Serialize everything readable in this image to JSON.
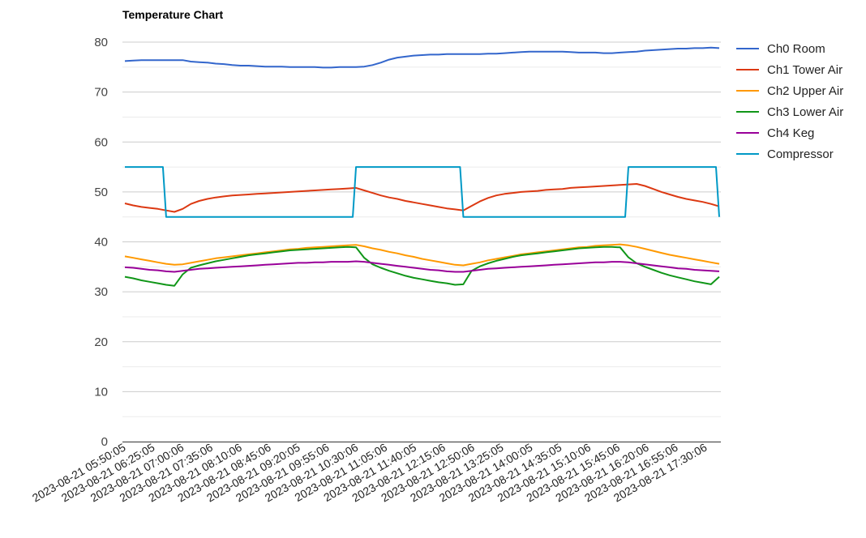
{
  "chart_data": {
    "type": "line",
    "title": "Temperature Chart",
    "ylim": [
      0,
      80
    ],
    "yticks": [
      0,
      10,
      20,
      30,
      40,
      50,
      60,
      70,
      80
    ],
    "grid": true,
    "legend": "right",
    "x_labels": [
      "2023-08-21 05:50:05",
      "2023-08-21 06:25:05",
      "2023-08-21 07:00:06",
      "2023-08-21 07:35:06",
      "2023-08-21 08:10:06",
      "2023-08-21 08:45:06",
      "2023-08-21 09:20:05",
      "2023-08-21 09:55:06",
      "2023-08-21 10:30:06",
      "2023-08-21 11:05:06",
      "2023-08-21 11:40:05",
      "2023-08-21 12:15:06",
      "2023-08-21 12:50:06",
      "2023-08-21 13:25:05",
      "2023-08-21 14:00:05",
      "2023-08-21 14:35:05",
      "2023-08-21 15:10:06",
      "2023-08-21 15:45:06",
      "2023-08-21 16:20:06",
      "2023-08-21 16:55:06",
      "2023-08-21 17:30:06"
    ],
    "x": [
      "05:50",
      "06:00",
      "06:10",
      "06:20",
      "06:30",
      "06:40",
      "06:50",
      "07:00",
      "07:10",
      "07:20",
      "07:30",
      "07:40",
      "07:50",
      "08:00",
      "08:10",
      "08:20",
      "08:30",
      "08:40",
      "08:50",
      "09:00",
      "09:10",
      "09:20",
      "09:30",
      "09:40",
      "09:50",
      "10:00",
      "10:10",
      "10:20",
      "10:30",
      "10:40",
      "10:50",
      "11:00",
      "11:10",
      "11:20",
      "11:30",
      "11:40",
      "11:50",
      "12:00",
      "12:10",
      "12:20",
      "12:30",
      "12:40",
      "12:50",
      "13:00",
      "13:10",
      "13:20",
      "13:30",
      "13:40",
      "13:50",
      "14:00",
      "14:10",
      "14:20",
      "14:30",
      "14:40",
      "14:50",
      "15:00",
      "15:10",
      "15:20",
      "15:30",
      "15:40",
      "15:50",
      "16:00",
      "16:10",
      "16:20",
      "16:30",
      "16:40",
      "16:50",
      "17:00",
      "17:10",
      "17:20",
      "17:30",
      "17:40",
      "17:50"
    ],
    "series": [
      {
        "name": "Ch0 Room",
        "color": "#3366cc",
        "values": [
          76.2,
          76.3,
          76.4,
          76.4,
          76.4,
          76.4,
          76.4,
          76.4,
          76.1,
          76.0,
          75.9,
          75.7,
          75.6,
          75.4,
          75.3,
          75.3,
          75.2,
          75.1,
          75.1,
          75.1,
          75.0,
          75.0,
          75.0,
          75.0,
          74.9,
          74.9,
          75.0,
          75.0,
          75.0,
          75.1,
          75.4,
          75.9,
          76.5,
          76.9,
          77.1,
          77.3,
          77.4,
          77.5,
          77.5,
          77.6,
          77.6,
          77.6,
          77.6,
          77.6,
          77.7,
          77.7,
          77.8,
          77.9,
          78.0,
          78.1,
          78.1,
          78.1,
          78.1,
          78.1,
          78.0,
          77.9,
          77.9,
          77.9,
          77.8,
          77.8,
          77.9,
          78.0,
          78.1,
          78.3,
          78.4,
          78.5,
          78.6,
          78.7,
          78.7,
          78.8,
          78.8,
          78.9,
          78.8
        ]
      },
      {
        "name": "Ch1 Tower Air",
        "color": "#dc3912",
        "values": [
          47.7,
          47.3,
          47.0,
          46.8,
          46.6,
          46.3,
          46.0,
          46.6,
          47.6,
          48.2,
          48.6,
          48.9,
          49.1,
          49.3,
          49.4,
          49.5,
          49.6,
          49.7,
          49.8,
          49.9,
          50.0,
          50.1,
          50.2,
          50.3,
          50.4,
          50.5,
          50.6,
          50.7,
          50.8,
          50.3,
          49.8,
          49.3,
          48.9,
          48.6,
          48.2,
          47.9,
          47.6,
          47.3,
          47.0,
          46.7,
          46.5,
          46.3,
          47.2,
          48.1,
          48.8,
          49.3,
          49.6,
          49.8,
          50.0,
          50.1,
          50.2,
          50.4,
          50.5,
          50.6,
          50.8,
          50.9,
          51.0,
          51.1,
          51.2,
          51.3,
          51.4,
          51.5,
          51.6,
          51.2,
          50.6,
          50.0,
          49.5,
          49.0,
          48.6,
          48.3,
          48.0,
          47.6,
          47.1
        ]
      },
      {
        "name": "Ch2 Upper Air",
        "color": "#ff9900",
        "values": [
          37.1,
          36.8,
          36.5,
          36.2,
          35.9,
          35.6,
          35.4,
          35.5,
          35.8,
          36.1,
          36.4,
          36.7,
          36.9,
          37.1,
          37.3,
          37.5,
          37.7,
          37.9,
          38.1,
          38.3,
          38.5,
          38.6,
          38.8,
          38.9,
          39.0,
          39.1,
          39.2,
          39.3,
          39.4,
          39.1,
          38.7,
          38.4,
          38.0,
          37.7,
          37.3,
          37.0,
          36.6,
          36.3,
          36.0,
          35.7,
          35.4,
          35.3,
          35.6,
          35.9,
          36.3,
          36.6,
          36.9,
          37.2,
          37.5,
          37.7,
          37.9,
          38.1,
          38.3,
          38.5,
          38.7,
          38.9,
          39.0,
          39.2,
          39.3,
          39.4,
          39.5,
          39.3,
          39.0,
          38.6,
          38.2,
          37.8,
          37.4,
          37.1,
          36.8,
          36.5,
          36.2,
          35.9,
          35.6
        ]
      },
      {
        "name": "Ch3 Lower Air",
        "color": "#109618",
        "values": [
          33.0,
          32.7,
          32.3,
          32.0,
          31.7,
          31.4,
          31.2,
          33.5,
          34.8,
          35.3,
          35.7,
          36.1,
          36.4,
          36.7,
          37.0,
          37.3,
          37.5,
          37.7,
          37.9,
          38.1,
          38.3,
          38.4,
          38.5,
          38.6,
          38.7,
          38.8,
          38.9,
          39.0,
          38.9,
          36.8,
          35.5,
          34.8,
          34.2,
          33.7,
          33.2,
          32.8,
          32.5,
          32.2,
          31.9,
          31.7,
          31.4,
          31.5,
          34.2,
          35.1,
          35.7,
          36.2,
          36.6,
          37.0,
          37.3,
          37.5,
          37.7,
          37.9,
          38.1,
          38.3,
          38.5,
          38.7,
          38.8,
          38.9,
          39.0,
          39.0,
          38.9,
          36.9,
          35.7,
          35.0,
          34.4,
          33.8,
          33.3,
          32.9,
          32.5,
          32.1,
          31.8,
          31.5,
          33.0
        ]
      },
      {
        "name": "Ch4 Keg",
        "color": "#990099",
        "values": [
          34.9,
          34.8,
          34.6,
          34.4,
          34.3,
          34.1,
          34.0,
          34.2,
          34.4,
          34.6,
          34.7,
          34.8,
          34.9,
          35.0,
          35.1,
          35.2,
          35.3,
          35.4,
          35.5,
          35.6,
          35.7,
          35.8,
          35.8,
          35.9,
          35.9,
          36.0,
          36.0,
          36.0,
          36.1,
          36.0,
          35.8,
          35.6,
          35.4,
          35.2,
          35.0,
          34.8,
          34.6,
          34.4,
          34.3,
          34.1,
          34.0,
          34.0,
          34.2,
          34.4,
          34.6,
          34.7,
          34.8,
          34.9,
          35.0,
          35.1,
          35.2,
          35.3,
          35.4,
          35.5,
          35.6,
          35.7,
          35.8,
          35.9,
          35.9,
          36.0,
          36.0,
          35.9,
          35.7,
          35.5,
          35.3,
          35.1,
          34.9,
          34.7,
          34.6,
          34.4,
          34.3,
          34.2,
          34.1
        ]
      },
      {
        "name": "Compressor",
        "color": "#0099c6",
        "values": [
          55,
          55,
          55,
          55,
          55,
          45,
          45,
          45,
          45,
          45,
          45,
          45,
          45,
          45,
          45,
          45,
          45,
          45,
          45,
          45,
          45,
          45,
          45,
          45,
          45,
          45,
          45,
          45,
          55,
          55,
          55,
          55,
          55,
          55,
          55,
          55,
          55,
          55,
          55,
          55,
          55,
          45,
          45,
          45,
          45,
          45,
          45,
          45,
          45,
          45,
          45,
          45,
          45,
          45,
          45,
          45,
          45,
          45,
          45,
          45,
          45,
          55,
          55,
          55,
          55,
          55,
          55,
          55,
          55,
          55,
          55,
          55,
          45
        ]
      }
    ]
  }
}
